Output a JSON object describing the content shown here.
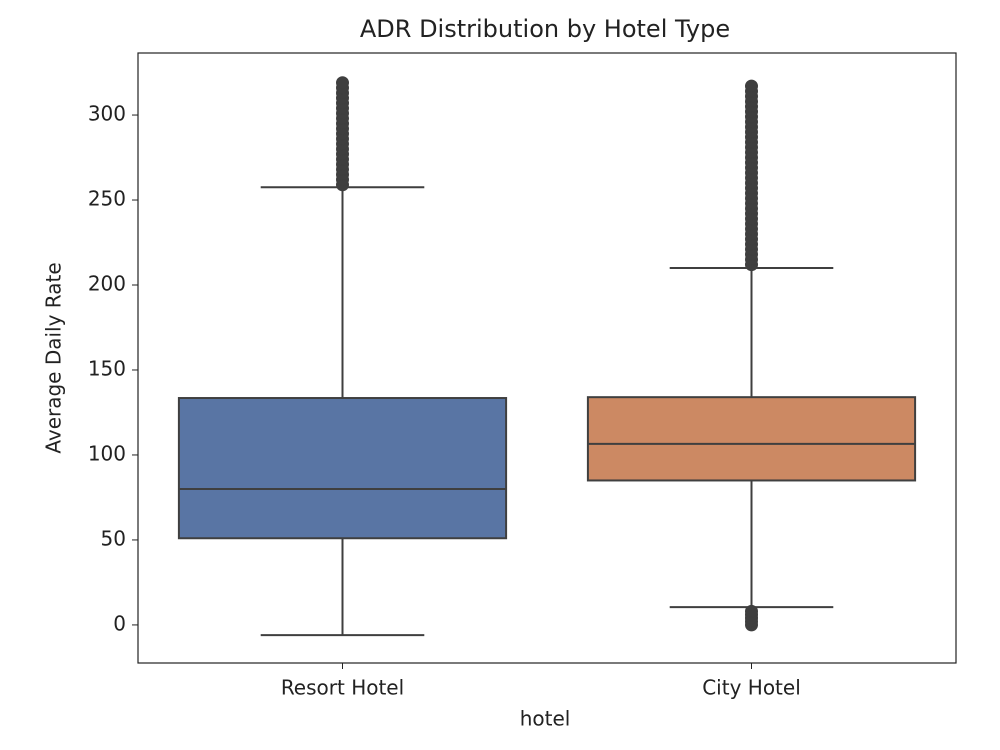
{
  "chart_data": {
    "type": "box",
    "title": "ADR Distribution by Hotel Type",
    "x_label": "hotel",
    "y_label": "Average Daily Rate",
    "categories": [
      "Resort Hotel",
      "City Hotel"
    ],
    "boxes": [
      {
        "color": "#5975a4",
        "whislo": -6,
        "q1": 51,
        "med": 80,
        "q3": 133.5,
        "whishi": 257.5,
        "fliers": [
          259,
          262,
          265,
          268,
          271,
          274,
          277,
          280,
          283,
          286,
          289,
          292,
          295,
          298,
          301,
          304,
          307,
          310,
          313,
          316,
          319
        ]
      },
      {
        "color": "#cc8963",
        "whislo": 10.5,
        "q1": 85,
        "med": 106.5,
        "q3": 134,
        "whishi": 210,
        "fliers": [
          0,
          2,
          4,
          6,
          8,
          212,
          215,
          218,
          221,
          224,
          227,
          230,
          233,
          236,
          239,
          242,
          245,
          248,
          251,
          254,
          257,
          260,
          263,
          266,
          269,
          272,
          275,
          278,
          281,
          284,
          287,
          290,
          293,
          296,
          299,
          302,
          305,
          308,
          311,
          314,
          317
        ]
      }
    ],
    "ylim": [
      -22.4,
      336.5
    ],
    "yticks": [
      0,
      50,
      100,
      150,
      200,
      250,
      300
    ]
  }
}
